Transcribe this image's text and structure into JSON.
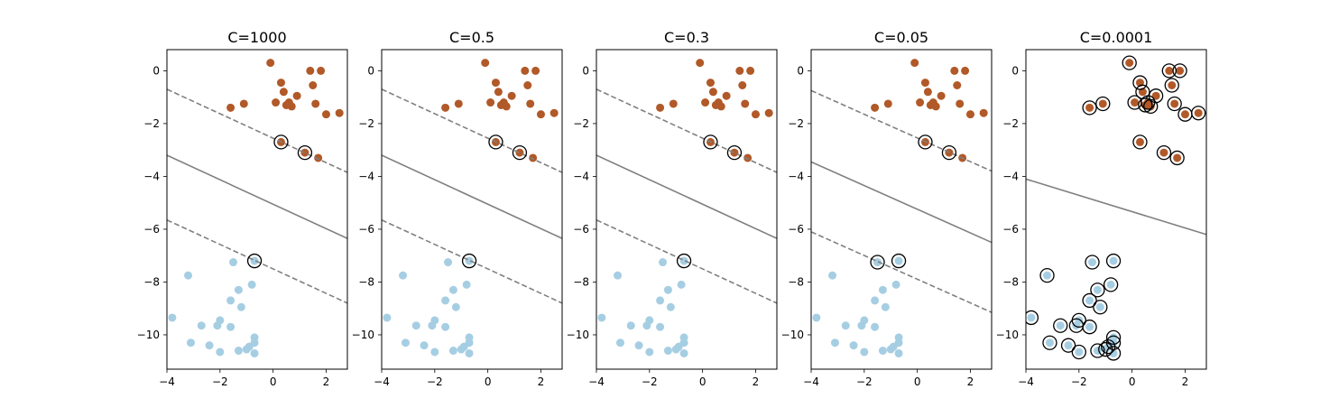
{
  "chart_data": {
    "type": "scatter",
    "xlim": [
      -4,
      2.8
    ],
    "ylim": [
      -11.3,
      0.8
    ],
    "xticks": [
      -4,
      -2,
      0,
      2
    ],
    "yticks": [
      0,
      -2,
      -4,
      -6,
      -8,
      -10
    ],
    "colors": {
      "class_0": "#a6cee3",
      "class_1": "#b15928",
      "boundary": "#808080"
    },
    "points_class_1": [
      [
        -0.1,
        0.3
      ],
      [
        1.4,
        0.0
      ],
      [
        1.8,
        0.0
      ],
      [
        0.3,
        -0.45
      ],
      [
        0.4,
        -0.8
      ],
      [
        1.5,
        -0.55
      ],
      [
        0.9,
        -0.95
      ],
      [
        0.1,
        -1.2
      ],
      [
        0.6,
        -1.2
      ],
      [
        0.7,
        -1.35
      ],
      [
        0.5,
        -1.3
      ],
      [
        1.6,
        -1.25
      ],
      [
        -1.1,
        -1.25
      ],
      [
        -1.6,
        -1.4
      ],
      [
        2.0,
        -1.65
      ],
      [
        2.5,
        -1.6
      ],
      [
        0.3,
        -2.7
      ],
      [
        1.2,
        -3.1
      ],
      [
        1.7,
        -3.3
      ]
    ],
    "points_class_0": [
      [
        -1.5,
        -7.25
      ],
      [
        -0.7,
        -7.2
      ],
      [
        -3.2,
        -7.75
      ],
      [
        -0.8,
        -8.1
      ],
      [
        -1.3,
        -8.3
      ],
      [
        -1.6,
        -8.7
      ],
      [
        -1.2,
        -8.95
      ],
      [
        -3.8,
        -9.35
      ],
      [
        -2.0,
        -9.45
      ],
      [
        -2.1,
        -9.65
      ],
      [
        -1.6,
        -9.7
      ],
      [
        -2.7,
        -9.65
      ],
      [
        -0.7,
        -10.1
      ],
      [
        -0.7,
        -10.3
      ],
      [
        -3.1,
        -10.3
      ],
      [
        -2.4,
        -10.4
      ],
      [
        -0.9,
        -10.45
      ],
      [
        -1.3,
        -10.6
      ],
      [
        -1.0,
        -10.55
      ],
      [
        -2.0,
        -10.65
      ],
      [
        -0.7,
        -10.7
      ]
    ],
    "panels": [
      {
        "title": "C=1000",
        "boundary": [
          [
            -4,
            -3.2
          ],
          [
            2.8,
            -6.35
          ]
        ],
        "margin_upper": [
          [
            -4,
            -0.7
          ],
          [
            2.8,
            -3.85
          ]
        ],
        "margin_lower": [
          [
            -4,
            -5.65
          ],
          [
            2.8,
            -8.8
          ]
        ],
        "support_vectors": [
          [
            0.3,
            -2.7
          ],
          [
            1.2,
            -3.1
          ],
          [
            -0.7,
            -7.2
          ]
        ]
      },
      {
        "title": "C=0.5",
        "boundary": [
          [
            -4,
            -3.2
          ],
          [
            2.8,
            -6.35
          ]
        ],
        "margin_upper": [
          [
            -4,
            -0.7
          ],
          [
            2.8,
            -3.85
          ]
        ],
        "margin_lower": [
          [
            -4,
            -5.65
          ],
          [
            2.8,
            -8.8
          ]
        ],
        "support_vectors": [
          [
            0.3,
            -2.7
          ],
          [
            1.2,
            -3.1
          ],
          [
            -0.7,
            -7.2
          ]
        ]
      },
      {
        "title": "C=0.3",
        "boundary": [
          [
            -4,
            -3.2
          ],
          [
            2.8,
            -6.35
          ]
        ],
        "margin_upper": [
          [
            -4,
            -0.7
          ],
          [
            2.8,
            -3.85
          ]
        ],
        "margin_lower": [
          [
            -4,
            -5.65
          ],
          [
            2.8,
            -8.8
          ]
        ],
        "support_vectors": [
          [
            0.3,
            -2.7
          ],
          [
            1.2,
            -3.1
          ],
          [
            -0.7,
            -7.2
          ]
        ]
      },
      {
        "title": "C=0.05",
        "boundary": [
          [
            -4,
            -3.45
          ],
          [
            2.8,
            -6.5
          ]
        ],
        "margin_upper": [
          [
            -4,
            -0.75
          ],
          [
            2.8,
            -3.8
          ]
        ],
        "margin_lower": [
          [
            -4,
            -6.1
          ],
          [
            2.8,
            -9.15
          ]
        ],
        "support_vectors": [
          [
            0.3,
            -2.7
          ],
          [
            1.2,
            -3.1
          ],
          [
            -1.5,
            -7.25
          ],
          [
            -0.7,
            -7.2
          ]
        ]
      },
      {
        "title": "C=0.0001",
        "boundary": [
          [
            -4,
            -4.1
          ],
          [
            2.8,
            -6.2
          ]
        ],
        "margin_upper": null,
        "margin_lower": null,
        "support_vectors": "all"
      }
    ]
  }
}
